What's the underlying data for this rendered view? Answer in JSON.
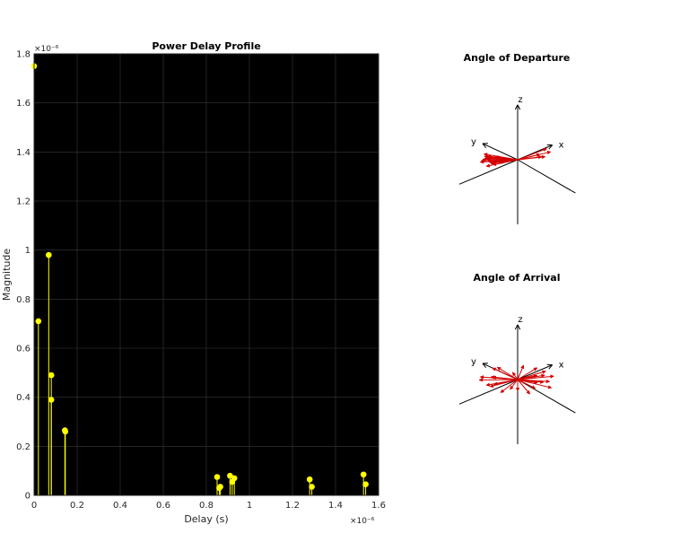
{
  "chart_data": [
    {
      "type": "stem",
      "title": "Power Delay Profile",
      "xlabel": "Delay (s)",
      "ylabel": "Magnitude",
      "x_exponent": "×10⁻⁶",
      "y_exponent": "×10⁻⁶",
      "xlim": [
        0,
        1.6
      ],
      "ylim": [
        0,
        1.8
      ],
      "x_ticks": [
        0,
        0.2,
        0.4,
        0.6,
        0.8,
        1,
        1.2,
        1.4,
        1.6
      ],
      "x_tick_labels": [
        "0",
        "0.2",
        "0.4",
        "0.6",
        "0.8",
        "1",
        "1.2",
        "1.4",
        "1.6"
      ],
      "y_ticks": [
        0,
        0.2,
        0.4,
        0.6,
        0.8,
        1,
        1.2,
        1.4,
        1.6,
        1.8
      ],
      "y_tick_labels": [
        "0",
        "0.2",
        "0.4",
        "0.6",
        "0.8",
        "1",
        "1.2",
        "1.4",
        "1.6",
        "1.8"
      ],
      "grid": true,
      "background": "#000000",
      "color": "#ffff00",
      "points": [
        {
          "x": 0.0,
          "y": 1.75
        },
        {
          "x": 0.02,
          "y": 0.71
        },
        {
          "x": 0.068,
          "y": 0.98
        },
        {
          "x": 0.08,
          "y": 0.49
        },
        {
          "x": 0.08,
          "y": 0.39
        },
        {
          "x": 0.143,
          "y": 0.265
        },
        {
          "x": 0.145,
          "y": 0.26
        },
        {
          "x": 0.85,
          "y": 0.075
        },
        {
          "x": 0.86,
          "y": 0.03
        },
        {
          "x": 0.865,
          "y": 0.035
        },
        {
          "x": 0.91,
          "y": 0.08
        },
        {
          "x": 0.92,
          "y": 0.055
        },
        {
          "x": 0.93,
          "y": 0.07
        },
        {
          "x": 1.28,
          "y": 0.065
        },
        {
          "x": 1.29,
          "y": 0.035
        },
        {
          "x": 1.53,
          "y": 0.085
        },
        {
          "x": 1.54,
          "y": 0.045
        }
      ]
    },
    {
      "type": "3d-vector",
      "title": "Angle of Departure",
      "axes": [
        "x",
        "y",
        "z"
      ],
      "axis_color": "#000000",
      "ray_color": "#d40000",
      "rays_azimuth_deg": [
        175,
        178,
        180,
        182,
        184,
        185,
        188,
        190,
        176,
        179,
        160,
        165,
        170,
        20,
        25,
        30,
        35,
        40,
        200,
        210,
        220,
        150
      ]
    },
    {
      "type": "3d-vector",
      "title": "Angle of Arrival",
      "axes": [
        "x",
        "y",
        "z"
      ],
      "axis_color": "#000000",
      "ray_color": "#d40000",
      "rays_azimuth_deg": [
        0,
        15,
        30,
        45,
        60,
        80,
        100,
        120,
        135,
        150,
        165,
        180,
        195,
        210,
        225,
        240,
        255,
        270,
        290,
        305,
        320,
        335,
        350,
        10,
        170
      ]
    }
  ]
}
